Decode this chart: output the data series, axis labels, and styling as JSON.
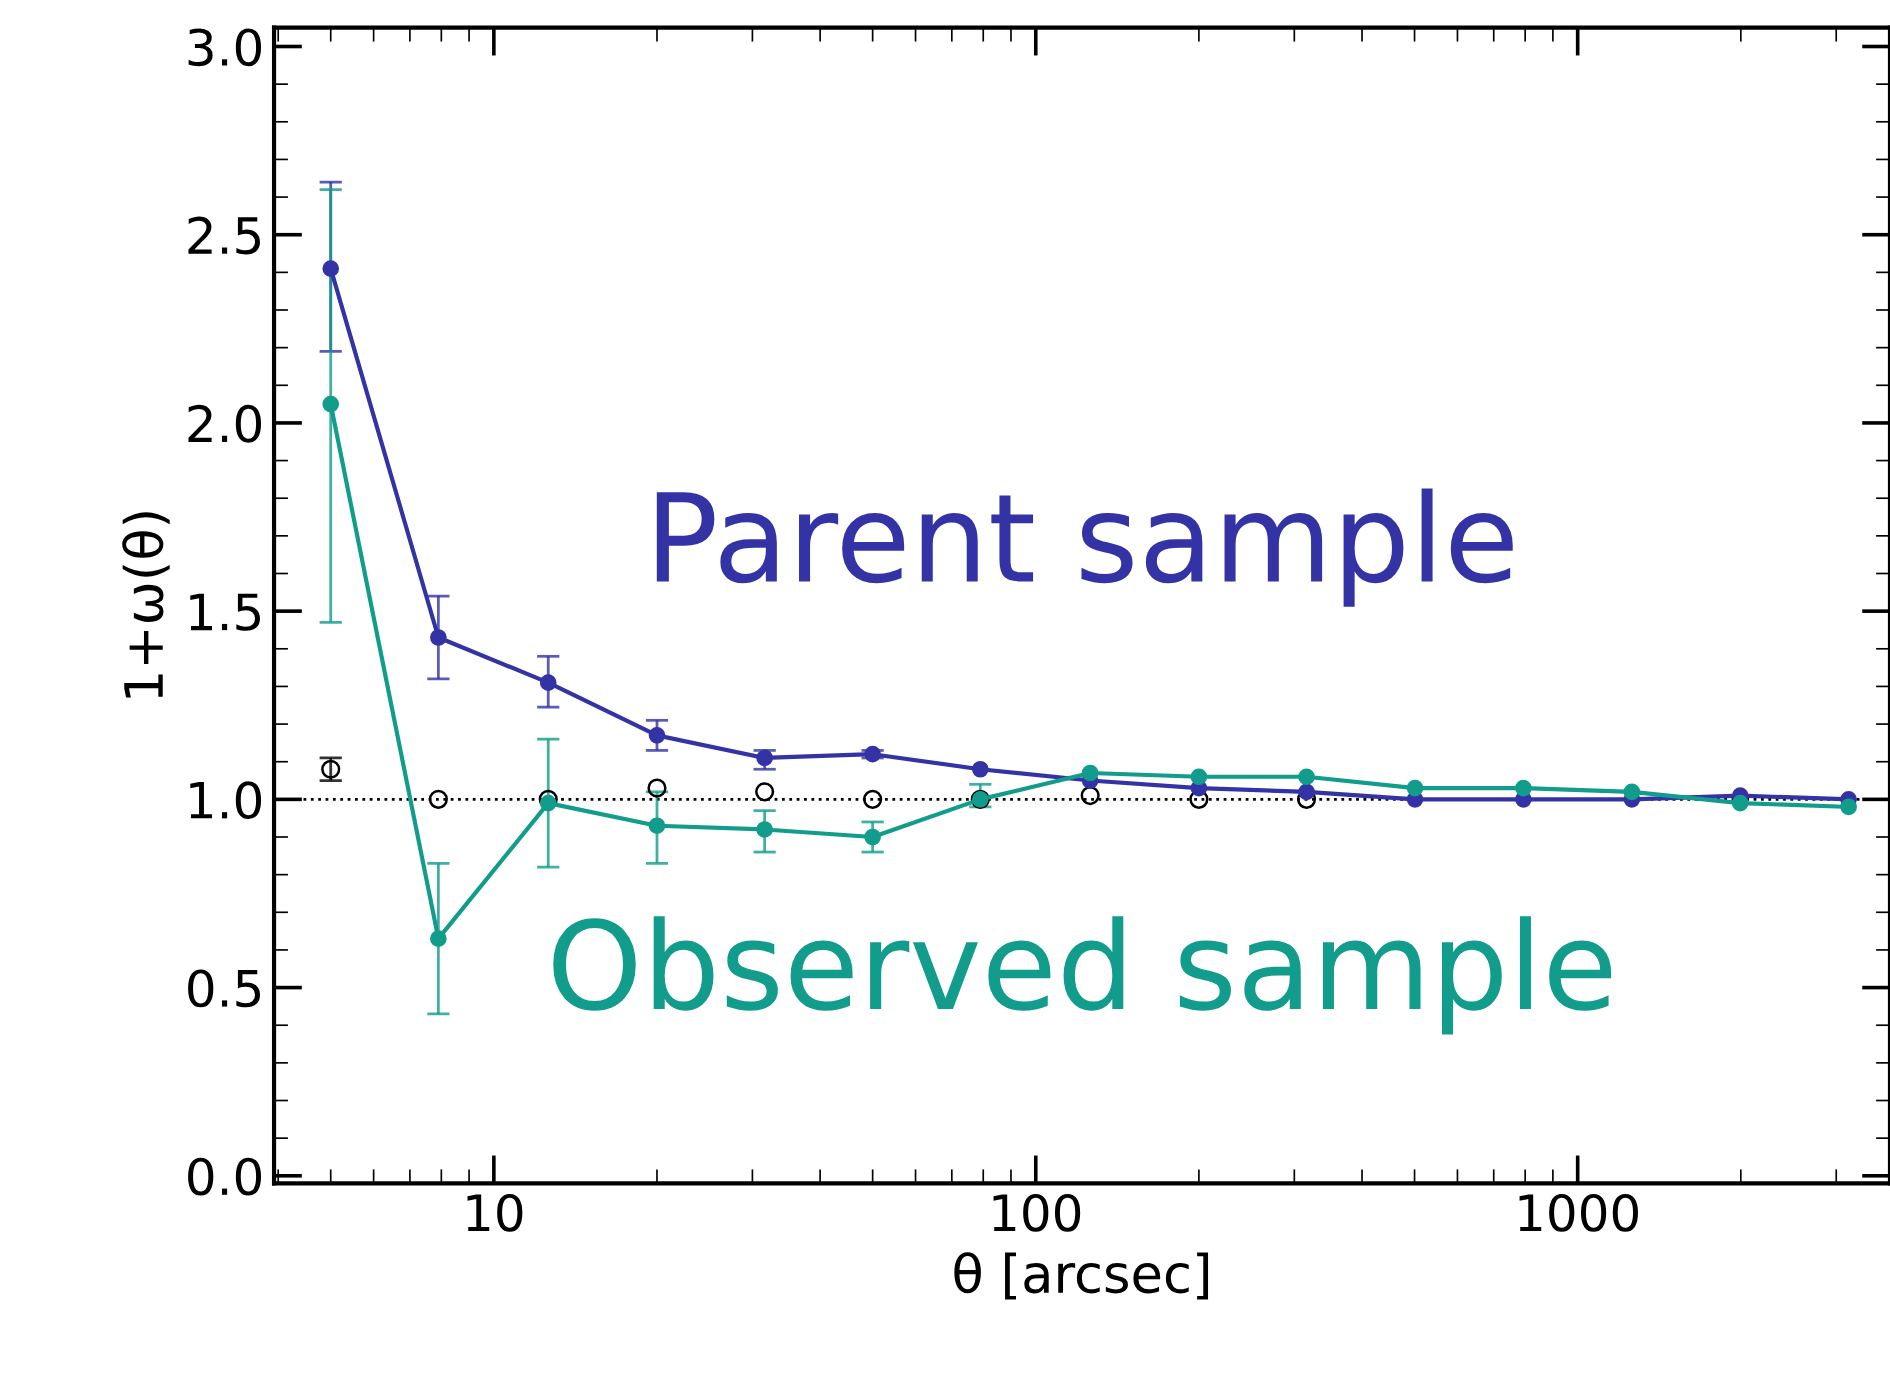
{
  "chart_data": {
    "type": "line",
    "xlabel": "θ [arcsec]",
    "ylabel": "1+ω(θ)",
    "x": [
      5,
      7.9,
      12.6,
      20,
      31.6,
      50,
      79,
      126,
      200,
      316,
      501,
      794,
      1259,
      1995,
      3162
    ],
    "xlim": [
      3.93,
      3770
    ],
    "ylim": [
      -0.02,
      3.05
    ],
    "xticks": [
      10,
      100,
      1000
    ],
    "yticks": [
      {
        "value": 0,
        "label": "0.0"
      },
      0.5,
      {
        "value": 1,
        "label": "1.0"
      },
      1.5,
      {
        "value": 2,
        "label": "2.0"
      },
      2.5,
      {
        "value": 3,
        "label": "3.0"
      }
    ],
    "log": "x",
    "grid": false,
    "legend": false,
    "marker": "circle",
    "ref_lines": [
      {
        "axis": "y",
        "value": 1,
        "label": null,
        "color": "#000000",
        "line_style": "dotted"
      }
    ],
    "series": [
      {
        "name": "Parent sample",
        "color": "#3333a6",
        "values": [
          2.41,
          1.43,
          1.31,
          1.17,
          1.11,
          1.12,
          1.08,
          1.05,
          1.03,
          1.02,
          1.0,
          1.0,
          1.0,
          1.01,
          1.0
        ],
        "errors": [
          [
            2.19,
            2.64
          ],
          [
            1.32,
            1.54
          ],
          [
            1.245,
            1.38
          ],
          [
            1.13,
            1.21
          ],
          [
            1.08,
            1.13
          ],
          [
            1.11,
            1.13
          ],
          null,
          null,
          null,
          null,
          null,
          null,
          null,
          null,
          null
        ]
      },
      {
        "name": "Observed sample",
        "color": "#119c8c",
        "values": [
          2.05,
          0.63,
          0.99,
          0.93,
          0.92,
          0.9,
          1.0,
          1.07,
          1.06,
          1.06,
          1.03,
          1.03,
          1.02,
          0.99,
          0.98
        ],
        "errors": [
          [
            1.47,
            2.62
          ],
          [
            0.43,
            0.83
          ],
          [
            0.82,
            1.16
          ],
          [
            0.83,
            1.02
          ],
          [
            0.86,
            0.97
          ],
          [
            0.86,
            0.94
          ],
          [
            0.98,
            1.04
          ],
          null,
          null,
          null,
          null,
          null,
          null,
          null,
          null
        ]
      },
      {
        "type": "scatter",
        "color": "#000000",
        "values": [
          1.08,
          1.0,
          1.0,
          1.03,
          1.02,
          1.0,
          1.0,
          1.01,
          1.0,
          1.0,
          null,
          null,
          null,
          null,
          null
        ],
        "errors": [
          [
            1.05,
            1.11
          ],
          null,
          null,
          null,
          null,
          null,
          null,
          null,
          null,
          null,
          null,
          null,
          null,
          null,
          null
        ]
      }
    ]
  }
}
